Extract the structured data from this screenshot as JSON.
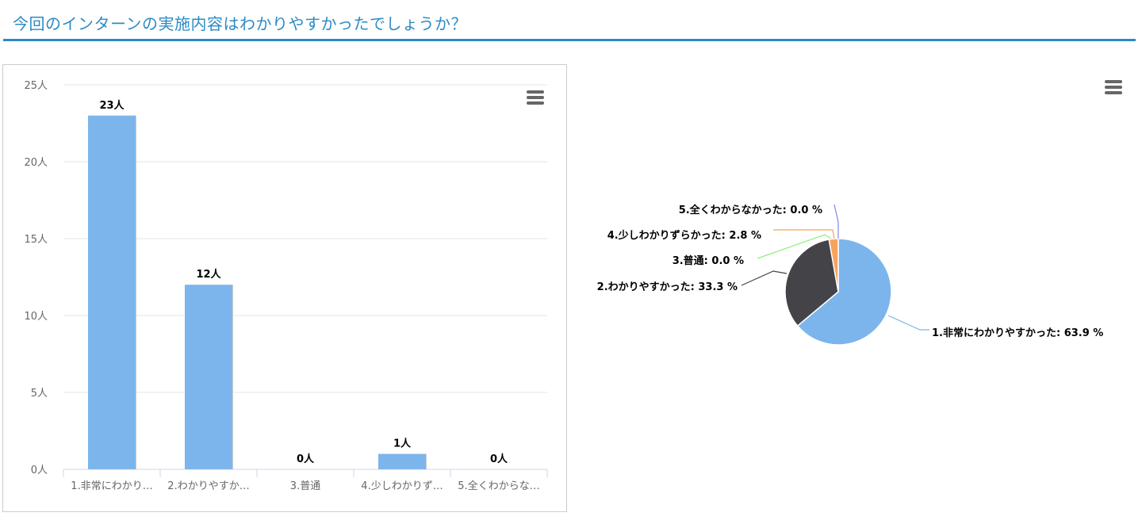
{
  "title": "今回のインターンの実施内容はわかりやすかったでしょうか？",
  "menu_icon": "hamburger-menu-icon",
  "chart_data": [
    {
      "type": "bar",
      "categories": [
        "1.非常にわかり…",
        "2.わかりやすか…",
        "3.普通",
        "4.少しわかりず…",
        "5.全くわからな…"
      ],
      "values": [
        23,
        12,
        0,
        1,
        0
      ],
      "data_labels": [
        "23人",
        "12人",
        "0人",
        "1人",
        "0人"
      ],
      "yticks": [
        "0人",
        "5人",
        "10人",
        "15人",
        "20人",
        "25人"
      ],
      "ylim": [
        0,
        25
      ],
      "grid": true,
      "color": "#7cb5ec"
    },
    {
      "type": "pie",
      "labels": [
        "1.非常にわかりやすかった: 63.9 %",
        "2.わかりやすかった: 33.3 %",
        "3.普通: 0.0 %",
        "4.少しわかりずらかった: 2.8 %",
        "5.全くわからなかった: 0.0 %"
      ],
      "values": [
        63.9,
        33.3,
        0.0,
        2.8,
        0.0
      ],
      "colors": [
        "#7cb5ec",
        "#434348",
        "#90ed7d",
        "#f7a35c",
        "#8085e9"
      ]
    }
  ]
}
